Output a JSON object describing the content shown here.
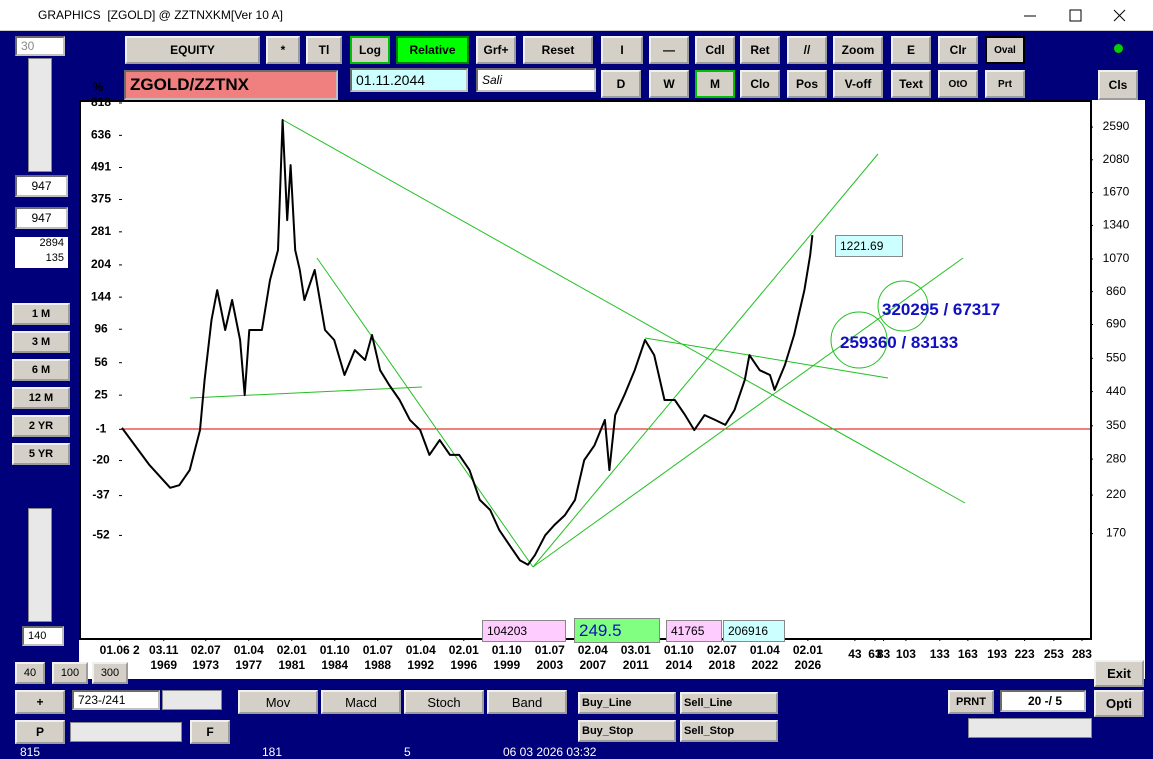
{
  "window": {
    "title": "GRAPHICS  [ZGOLD] @ ZZTNXKM[Ver 10 A]"
  },
  "toolbar": {
    "row1": [
      "EQUITY",
      "*",
      "Tl",
      "Log",
      "Relative",
      "Grf+",
      "Reset",
      "I",
      "—",
      "Cdl",
      "Ret",
      "//",
      "Zoom",
      "E",
      "Clr",
      "Oval"
    ],
    "row2": [
      "D",
      "W",
      "M",
      "Clo",
      "Pos",
      "V-off",
      "Text",
      "OtO",
      "Prt",
      "Cls"
    ],
    "symbol": "ZGOLD/ZZTNX",
    "date": "01.11.2044",
    "name": "Sali"
  },
  "left_panel": {
    "top_value": "30",
    "fields": [
      "947",
      "947"
    ],
    "info": [
      "2894",
      "135"
    ],
    "periods": [
      "1 M",
      "3 M",
      "6 M",
      "12 M",
      "2 YR",
      "5 YR"
    ],
    "bottom_value": "140",
    "zoom": [
      "40",
      "100",
      "300"
    ]
  },
  "chart_data": {
    "type": "line",
    "ylabel": "%",
    "x": [
      1966.2,
      1968.6,
      1970.4,
      1971.2,
      1972.1,
      1973.0,
      1973.4,
      1974.0,
      1974.5,
      1975.2,
      1975.8,
      1976.5,
      1976.9,
      1977.3,
      1978.4,
      1979.1,
      1979.8,
      1980.2,
      1980.6,
      1980.9,
      1981.3,
      1981.7,
      1982.1,
      1983.0,
      1983.9,
      1984.7,
      1985.6,
      1986.5,
      1987.4,
      1988.0,
      1988.7,
      1989.5,
      1990.4,
      1991.3,
      1992.2,
      1993.0,
      1993.9,
      1994.8,
      1995.6,
      1996.5,
      1997.4,
      1998.3,
      1999.1,
      2000.0,
      2000.9,
      2001.6,
      2002.2,
      2003.1,
      2003.9,
      2004.8,
      2005.7,
      2006.5,
      2007.4,
      2008.3,
      2008.7,
      2009.2,
      2010.0,
      2010.9,
      2011.8,
      2012.6,
      2013.5,
      2014.4,
      2015.3,
      2016.1,
      2017.0,
      2017.9,
      2018.8,
      2019.6,
      2020.5,
      2020.9,
      2021.8,
      2022.7,
      2023.1,
      2024.0,
      2024.8,
      2025.3,
      2025.7,
      2026.2,
      2026.4
    ],
    "series": [
      {
        "color": "#000000",
        "axis": "y2",
        "values": [
          345,
          269,
          231,
          235,
          260,
          340,
          476,
          711,
          869,
          665,
          813,
          622,
          430,
          665,
          665,
          929,
          1136,
          2715,
          1389,
          2007,
          1136,
          994,
          813,
          994,
          665,
          622,
          492,
          581,
          544,
          643,
          508,
          460,
          416,
          364,
          340,
          288,
          318,
          288,
          288,
          260,
          213,
          199,
          174,
          157,
          142,
          138,
          147,
          168,
          180,
          192,
          213,
          278,
          307,
          364,
          260,
          376,
          430,
          508,
          622,
          562,
          416,
          416,
          376,
          340,
          376,
          364,
          352,
          389,
          476,
          562,
          508,
          492,
          445,
          526,
          643,
          760,
          869,
          1099,
          1256
        ]
      }
    ],
    "xlim": [
      1966.2,
      2050.6
    ],
    "xticks": [
      {
        "value": 1966.0,
        "label": "01.06 2"
      },
      {
        "value": 1969.84,
        "label": "03.11 1969"
      },
      {
        "value": 1973.5,
        "label": "02.07 1973"
      },
      {
        "value": 1977.25,
        "label": "01.04 1977"
      },
      {
        "value": 1981.0,
        "label": "02.01 1981"
      },
      {
        "value": 1984.75,
        "label": "01.10 1984"
      },
      {
        "value": 1988.5,
        "label": "01.07 1988"
      },
      {
        "value": 1992.25,
        "label": "01.04 1992"
      },
      {
        "value": 1996.0,
        "label": "02.01 1996"
      },
      {
        "value": 1999.75,
        "label": "01.10 1999"
      },
      {
        "value": 2003.5,
        "label": "01.07 2003"
      },
      {
        "value": 2007.25,
        "label": "02.04 2007"
      },
      {
        "value": 2011.0,
        "label": "03.01 2011"
      },
      {
        "value": 2014.75,
        "label": "01.10 2014"
      },
      {
        "value": 2018.5,
        "label": "02.07 2018"
      },
      {
        "value": 2022.25,
        "label": "01.04 2022"
      },
      {
        "value": 2026.0,
        "label": "02.01 2026"
      },
      {
        "value": 2030.1,
        "label": "43"
      },
      {
        "value": 2031.85,
        "label": "63"
      },
      {
        "value": 2032.6,
        "label": "83"
      },
      {
        "value": 2034.55,
        "label": "103"
      },
      {
        "value": 2037.5,
        "label": "133"
      },
      {
        "value": 2039.95,
        "label": "163"
      },
      {
        "value": 2042.5,
        "label": "193"
      },
      {
        "value": 2044.9,
        "label": "223"
      },
      {
        "value": 2047.45,
        "label": "253"
      },
      {
        "value": 2049.9,
        "label": "283"
      }
    ],
    "ylim": [
      -76,
      787
    ],
    "yscale": "log-percent",
    "yticks": [
      818,
      636,
      491,
      375,
      281,
      204,
      144,
      96,
      56,
      25,
      -1,
      -20,
      -37,
      -52
    ],
    "y2lim": [
      85,
      2943
    ],
    "y2scale": "log",
    "y2ticks": [
      2590,
      2080,
      1670,
      1340,
      1070,
      860,
      690,
      550,
      440,
      350,
      280,
      220,
      170
    ],
    "annotations": {
      "last_price": "1221.69",
      "counts_upper": "320295 / 67317",
      "counts_lower": "259360 / 83133",
      "boxes": [
        "104203",
        "249.5",
        "41765",
        "206916"
      ]
    }
  },
  "bottom_bar": {
    "buttons_left": [
      "+",
      "P",
      "F"
    ],
    "position": "723-/241",
    "indicators": [
      "Mov",
      "Macd",
      "Stoch",
      "Band"
    ],
    "checks": [
      "Buy_Line",
      "Buy_Stop",
      "Sell_Line",
      "Sell_Stop"
    ],
    "print": "PRNT",
    "step": "20 -/ 5",
    "actions": [
      "Exit",
      "Opti"
    ]
  },
  "status": [
    "815",
    "181",
    "5",
    "06 03 2026 03:32"
  ]
}
